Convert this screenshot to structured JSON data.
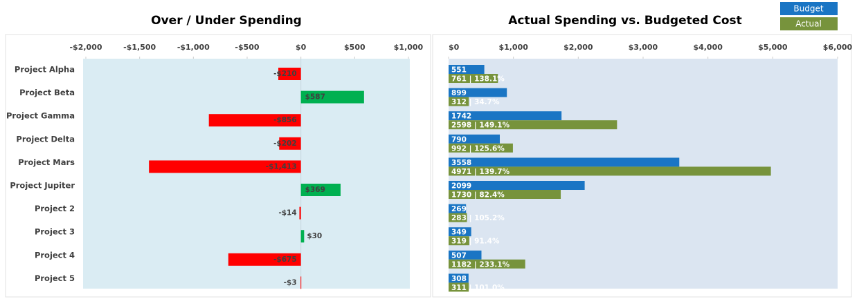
{
  "chart_data": [
    {
      "type": "bar",
      "orientation": "horizontal",
      "title": "Over / Under Spending",
      "categories": [
        "Project Alpha",
        "Project Beta",
        "Project Gamma",
        "Project Delta",
        "Project Mars",
        "Project Jupiter",
        "Project 2",
        "Project 3",
        "Project 4",
        "Project 5"
      ],
      "values": [
        -210,
        587,
        -856,
        -202,
        -1413,
        369,
        -14,
        30,
        -675,
        -3
      ],
      "value_labels": [
        "-$210",
        "$587",
        "-$856",
        "-$202",
        "-$1,413",
        "$369",
        "-$14",
        "$30",
        "-$675",
        "-$3"
      ],
      "positive_color": "#00b050",
      "negative_color": "#ff0000",
      "xlim": [
        -2000,
        1000
      ],
      "xticks": [
        {
          "value": -2000,
          "label": "-$2,000"
        },
        {
          "value": -1500,
          "label": "-$1,500"
        },
        {
          "value": -1000,
          "label": "-$1,000"
        },
        {
          "value": -500,
          "label": "-$500"
        },
        {
          "value": 0,
          "label": "$0"
        },
        {
          "value": 500,
          "label": "$500"
        },
        {
          "value": 1000,
          "label": "$1,000"
        }
      ]
    },
    {
      "type": "grouped_bar",
      "orientation": "horizontal",
      "title": "Actual Spending vs. Budgeted Cost",
      "categories": [
        "Project Alpha",
        "Project Beta",
        "Project Gamma",
        "Project Delta",
        "Project Mars",
        "Project Jupiter",
        "Project 2",
        "Project 3",
        "Project 4",
        "Project 5"
      ],
      "series": [
        {
          "name": "Budget",
          "color": "#1a75c4",
          "values": [
            551,
            899,
            1742,
            790,
            3558,
            2099,
            269,
            349,
            507,
            308
          ]
        },
        {
          "name": "Actual",
          "color": "#77933c",
          "values": [
            761,
            312,
            2598,
            992,
            4971,
            1730,
            283,
            319,
            1182,
            311
          ],
          "value_labels": [
            "761 | 138.1%",
            "312 | 34.7%",
            "2598 | 149.1%",
            "992 | 125.6%",
            "4971 | 139.7%",
            "1730 | 82.4%",
            "283 | 105.2%",
            "319 | 91.4%",
            "1182 | 233.1%",
            "311 | 101.0%"
          ]
        }
      ],
      "legend": "top-right",
      "xlim": [
        0,
        6000
      ],
      "xticks": [
        {
          "value": 0,
          "label": "$0"
        },
        {
          "value": 1000,
          "label": "$1,000"
        },
        {
          "value": 2000,
          "label": "$2,000"
        },
        {
          "value": 3000,
          "label": "$3,000"
        },
        {
          "value": 4000,
          "label": "$4,000"
        },
        {
          "value": 5000,
          "label": "$5,000"
        },
        {
          "value": 6000,
          "label": "$6,000"
        }
      ]
    }
  ]
}
